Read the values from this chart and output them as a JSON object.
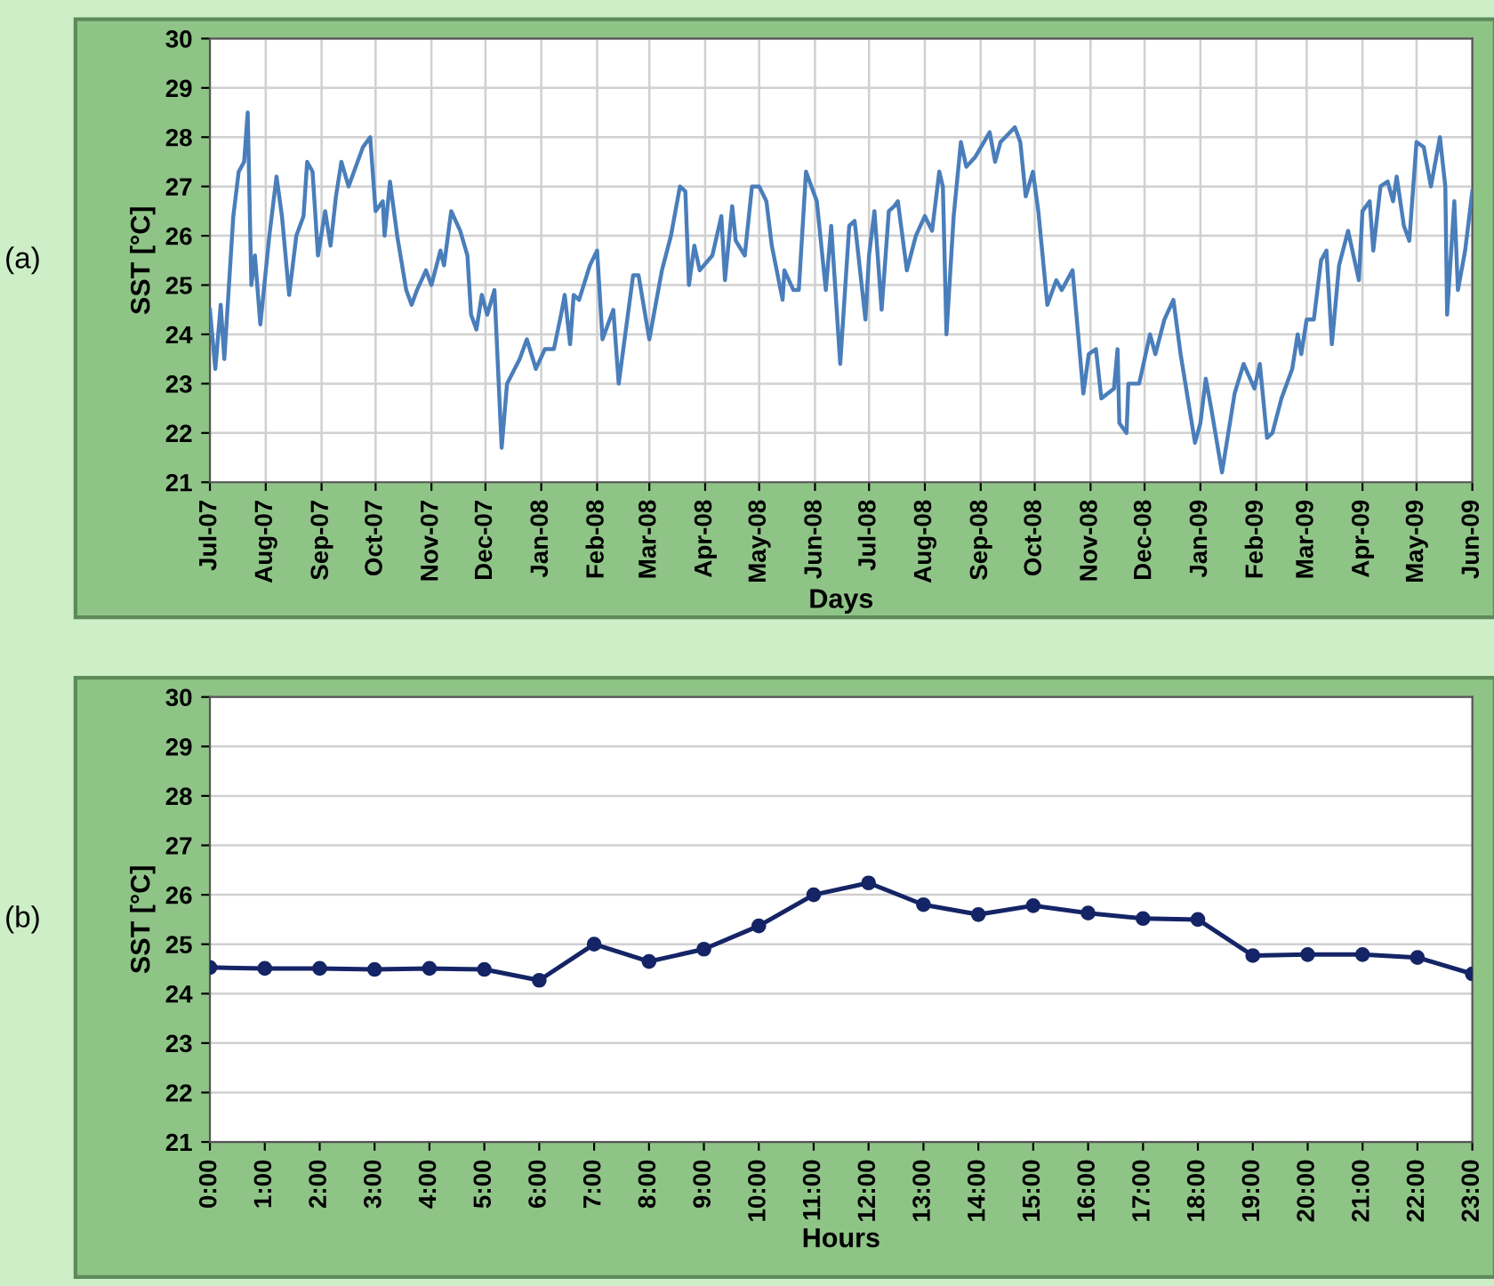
{
  "chart_data": [
    {
      "type": "line",
      "xlabel": "Days",
      "ylabel": "SST [°C]",
      "annotations": [
        "(a)"
      ],
      "grid": true,
      "xlim": [
        "2007-07-01",
        "2009-06-01"
      ],
      "ylim": [
        21,
        30
      ],
      "yticks": [
        21,
        22,
        23,
        24,
        25,
        26,
        27,
        28,
        29,
        30
      ],
      "xticks": [
        {
          "value": "2007-07-01",
          "label": "Jul-07"
        },
        {
          "value": "2007-08-01",
          "label": "Aug-07"
        },
        {
          "value": "2007-09-01",
          "label": "Sep-07"
        },
        {
          "value": "2007-10-01",
          "label": "Oct-07"
        },
        {
          "value": "2007-11-01",
          "label": "Nov-07"
        },
        {
          "value": "2007-12-01",
          "label": "Dec-07"
        },
        {
          "value": "2008-01-01",
          "label": "Jan-08"
        },
        {
          "value": "2008-02-01",
          "label": "Feb-08"
        },
        {
          "value": "2008-03-01",
          "label": "Mar-08"
        },
        {
          "value": "2008-04-01",
          "label": "Apr-08"
        },
        {
          "value": "2008-05-01",
          "label": "May-08"
        },
        {
          "value": "2008-06-01",
          "label": "Jun-08"
        },
        {
          "value": "2008-07-01",
          "label": "Jul-08"
        },
        {
          "value": "2008-08-01",
          "label": "Aug-08"
        },
        {
          "value": "2008-09-01",
          "label": "Sep-08"
        },
        {
          "value": "2008-10-01",
          "label": "Oct-08"
        },
        {
          "value": "2008-11-01",
          "label": "Nov-08"
        },
        {
          "value": "2008-12-01",
          "label": "Dec-08"
        },
        {
          "value": "2009-01-01",
          "label": "Jan-09"
        },
        {
          "value": "2009-02-01",
          "label": "Feb-09"
        },
        {
          "value": "2009-03-01",
          "label": "Mar-09"
        },
        {
          "value": "2009-04-01",
          "label": "Apr-09"
        },
        {
          "value": "2009-05-01",
          "label": "May-09"
        },
        {
          "value": "2009-06-01",
          "label": "Jun-09"
        }
      ],
      "series": [
        {
          "color": "#4a7ebb",
          "x": [
            "2007-07-01",
            "2007-07-04",
            "2007-07-07",
            "2007-07-09",
            "2007-07-14",
            "2007-07-17",
            "2007-07-20",
            "2007-07-22",
            "2007-07-24",
            "2007-07-26",
            "2007-07-29",
            "2007-08-03",
            "2007-08-07",
            "2007-08-10",
            "2007-08-14",
            "2007-08-18",
            "2007-08-22",
            "2007-08-24",
            "2007-08-27",
            "2007-08-30",
            "2007-09-03",
            "2007-09-06",
            "2007-09-09",
            "2007-09-12",
            "2007-09-16",
            "2007-09-24",
            "2007-09-28",
            "2007-10-01",
            "2007-10-05",
            "2007-10-06",
            "2007-10-09",
            "2007-10-13",
            "2007-10-18",
            "2007-10-21",
            "2007-10-24",
            "2007-10-29",
            "2007-11-01",
            "2007-11-06",
            "2007-11-08",
            "2007-11-12",
            "2007-11-17",
            "2007-11-21",
            "2007-11-23",
            "2007-11-26",
            "2007-11-29",
            "2007-12-02",
            "2007-12-06",
            "2007-12-10",
            "2007-12-13",
            "2007-12-20",
            "2007-12-24",
            "2007-12-29",
            "2008-01-03",
            "2008-01-08",
            "2008-01-12",
            "2008-01-14",
            "2008-01-17",
            "2008-01-19",
            "2008-01-22",
            "2008-01-28",
            "2008-02-01",
            "2008-02-04",
            "2008-02-10",
            "2008-02-13",
            "2008-02-21",
            "2008-02-24",
            "2008-03-01",
            "2008-03-08",
            "2008-03-13",
            "2008-03-18",
            "2008-03-21",
            "2008-03-23",
            "2008-03-26",
            "2008-03-29",
            "2008-04-05",
            "2008-04-10",
            "2008-04-12",
            "2008-04-16",
            "2008-04-18",
            "2008-04-23",
            "2008-04-27",
            "2008-05-01",
            "2008-05-05",
            "2008-05-08",
            "2008-05-14",
            "2008-05-15",
            "2008-05-20",
            "2008-05-23",
            "2008-05-27",
            "2008-06-02",
            "2008-06-07",
            "2008-06-10",
            "2008-06-15",
            "2008-06-20",
            "2008-06-23",
            "2008-06-29",
            "2008-07-01",
            "2008-07-04",
            "2008-07-08",
            "2008-07-12",
            "2008-07-15",
            "2008-07-17",
            "2008-07-22",
            "2008-07-27",
            "2008-08-01",
            "2008-08-05",
            "2008-08-09",
            "2008-08-11",
            "2008-08-13",
            "2008-08-17",
            "2008-08-21",
            "2008-08-24",
            "2008-08-29",
            "2008-09-06",
            "2008-09-09",
            "2008-09-12",
            "2008-09-20",
            "2008-09-23",
            "2008-09-26",
            "2008-09-30",
            "2008-10-03",
            "2008-10-08",
            "2008-10-13",
            "2008-10-16",
            "2008-10-22",
            "2008-10-28",
            "2008-10-31",
            "2008-11-04",
            "2008-11-07",
            "2008-11-14",
            "2008-11-16",
            "2008-11-17",
            "2008-11-21",
            "2008-11-22",
            "2008-11-28",
            "2008-12-04",
            "2008-12-07",
            "2008-12-12",
            "2008-12-17",
            "2008-12-21",
            "2008-12-25",
            "2008-12-29",
            "2009-01-01",
            "2009-01-04",
            "2009-01-07",
            "2009-01-13",
            "2009-01-20",
            "2009-01-25",
            "2009-01-31",
            "2009-02-03",
            "2009-02-07",
            "2009-02-10",
            "2009-02-15",
            "2009-02-21",
            "2009-02-24",
            "2009-02-26",
            "2009-03-01",
            "2009-03-05",
            "2009-03-09",
            "2009-03-12",
            "2009-03-15",
            "2009-03-19",
            "2009-03-24",
            "2009-03-30",
            "2009-04-01",
            "2009-04-05",
            "2009-04-07",
            "2009-04-11",
            "2009-04-15",
            "2009-04-18",
            "2009-04-20",
            "2009-04-24",
            "2009-04-27",
            "2009-05-01",
            "2009-05-05",
            "2009-05-09",
            "2009-05-14",
            "2009-05-17",
            "2009-05-18",
            "2009-05-22",
            "2009-05-24",
            "2009-05-28",
            "2009-06-01"
          ],
          "values": [
            24.5,
            23.3,
            24.6,
            23.5,
            26.4,
            27.3,
            27.5,
            28.5,
            25.0,
            25.6,
            24.2,
            26.0,
            27.2,
            26.4,
            24.8,
            26.0,
            26.4,
            27.5,
            27.3,
            25.6,
            26.5,
            25.8,
            26.8,
            27.5,
            27.0,
            27.8,
            28.0,
            26.5,
            26.7,
            26.0,
            27.1,
            26.0,
            24.9,
            24.6,
            24.9,
            25.3,
            25.0,
            25.7,
            25.4,
            26.5,
            26.1,
            25.6,
            24.4,
            24.1,
            24.8,
            24.4,
            24.9,
            21.7,
            23.0,
            23.5,
            23.9,
            23.3,
            23.7,
            23.7,
            24.4,
            24.8,
            23.8,
            24.8,
            24.7,
            25.4,
            25.7,
            23.9,
            24.5,
            23.0,
            25.2,
            25.2,
            23.9,
            25.3,
            26.0,
            27.0,
            26.9,
            25.0,
            25.8,
            25.3,
            25.6,
            26.4,
            25.1,
            26.6,
            25.9,
            25.6,
            27.0,
            27.0,
            26.7,
            25.8,
            24.7,
            25.3,
            24.9,
            24.9,
            27.3,
            26.7,
            24.9,
            26.2,
            23.4,
            26.2,
            26.3,
            24.3,
            25.6,
            26.5,
            24.5,
            26.5,
            26.6,
            26.7,
            25.3,
            26.0,
            26.4,
            26.1,
            27.3,
            27.0,
            24.0,
            26.4,
            27.9,
            27.4,
            27.6,
            28.1,
            27.5,
            27.9,
            28.2,
            27.9,
            26.8,
            27.3,
            26.5,
            24.6,
            25.1,
            24.9,
            25.3,
            22.8,
            23.6,
            23.7,
            22.7,
            22.9,
            23.7,
            22.2,
            22.0,
            23.0,
            23.0,
            24.0,
            23.6,
            24.3,
            24.7,
            23.6,
            22.7,
            21.8,
            22.2,
            23.1,
            22.5,
            21.2,
            22.8,
            23.4,
            22.9,
            23.4,
            21.9,
            22.0,
            22.7,
            23.3,
            24.0,
            23.6,
            24.3,
            24.3,
            25.5,
            25.7,
            23.8,
            25.4,
            26.1,
            25.1,
            26.5,
            26.7,
            25.7,
            27.0,
            27.1,
            26.7,
            27.2,
            26.2,
            25.9,
            27.9,
            27.8,
            27.0,
            28.0,
            27.0,
            24.4,
            26.7,
            24.9,
            25.7,
            26.9
          ]
        }
      ]
    },
    {
      "type": "line",
      "xlabel": "Hours",
      "ylabel": "SST [°C]",
      "annotations": [
        "(b)"
      ],
      "grid": "y",
      "marker": "circle",
      "xlim": [
        0,
        23
      ],
      "ylim": [
        21,
        30
      ],
      "yticks": [
        21,
        22,
        23,
        24,
        25,
        26,
        27,
        28,
        29,
        30
      ],
      "xticks": [
        {
          "value": 0,
          "label": "0:00"
        },
        {
          "value": 1,
          "label": "1:00"
        },
        {
          "value": 2,
          "label": "2:00"
        },
        {
          "value": 3,
          "label": "3:00"
        },
        {
          "value": 4,
          "label": "4:00"
        },
        {
          "value": 5,
          "label": "5:00"
        },
        {
          "value": 6,
          "label": "6:00"
        },
        {
          "value": 7,
          "label": "7:00"
        },
        {
          "value": 8,
          "label": "8:00"
        },
        {
          "value": 9,
          "label": "9:00"
        },
        {
          "value": 10,
          "label": "10:00"
        },
        {
          "value": 11,
          "label": "11:00"
        },
        {
          "value": 12,
          "label": "12:00"
        },
        {
          "value": 13,
          "label": "13:00"
        },
        {
          "value": 14,
          "label": "14:00"
        },
        {
          "value": 15,
          "label": "15:00"
        },
        {
          "value": 16,
          "label": "16:00"
        },
        {
          "value": 17,
          "label": "17:00"
        },
        {
          "value": 18,
          "label": "18:00"
        },
        {
          "value": 19,
          "label": "19:00"
        },
        {
          "value": 20,
          "label": "20:00"
        },
        {
          "value": 21,
          "label": "21:00"
        },
        {
          "value": 22,
          "label": "22:00"
        },
        {
          "value": 23,
          "label": "23:00"
        }
      ],
      "x": [
        0,
        1,
        2,
        3,
        4,
        5,
        6,
        7,
        8,
        9,
        10,
        11,
        12,
        13,
        14,
        15,
        16,
        17,
        18,
        19,
        20,
        21,
        22,
        23
      ],
      "series": [
        {
          "color": "#142466",
          "values": [
            24.53,
            24.51,
            24.51,
            24.49,
            24.51,
            24.49,
            24.27,
            25.0,
            24.65,
            24.9,
            25.37,
            26.0,
            26.24,
            25.8,
            25.6,
            25.78,
            25.63,
            25.52,
            25.5,
            24.77,
            24.79,
            24.79,
            24.73,
            24.4
          ]
        }
      ]
    }
  ]
}
